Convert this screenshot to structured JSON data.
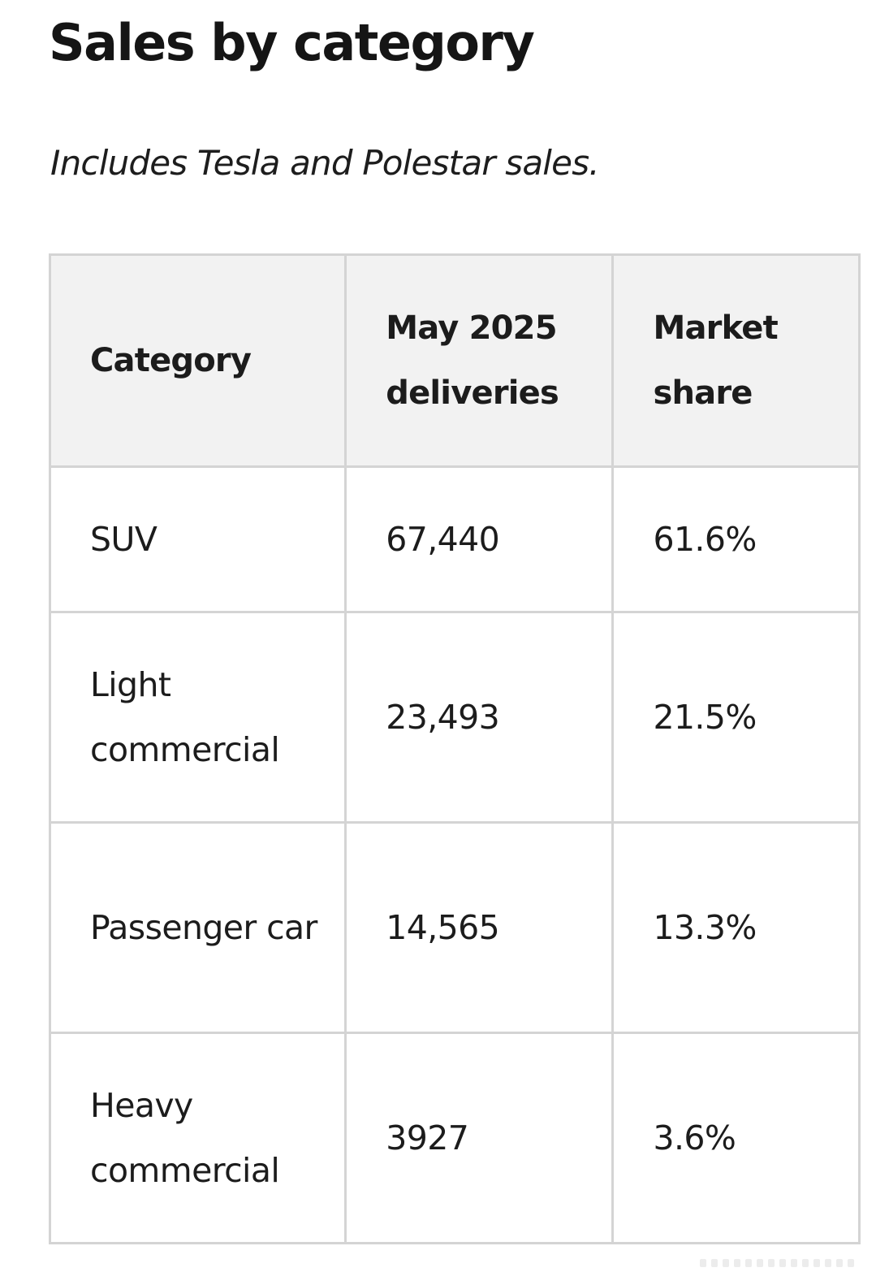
{
  "title": "Sales by category",
  "subtitle": "Includes Tesla and Polestar sales.",
  "table": {
    "headers": [
      "Category",
      "May 2025 deliveries",
      "Market share"
    ],
    "rows": [
      {
        "category": "SUV",
        "deliveries": "67,440",
        "share": "61.6%"
      },
      {
        "category": "Light commercial",
        "deliveries": "23,493",
        "share": "21.5%"
      },
      {
        "category": "Passenger car",
        "deliveries": "14,565",
        "share": "13.3%"
      },
      {
        "category": "Heavy commercial",
        "deliveries": "3927",
        "share": "3.6%"
      }
    ]
  },
  "colors": {
    "header_background": "#f2f2f2",
    "border": "#d4d4d4",
    "text": "#1a1a1a"
  }
}
